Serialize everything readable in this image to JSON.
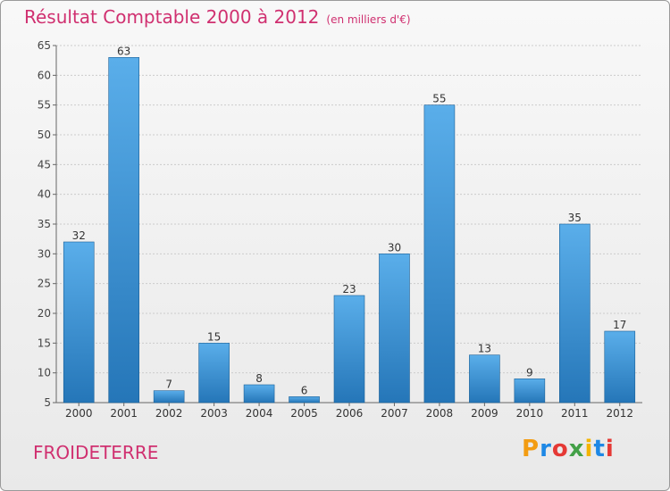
{
  "header": {
    "title": "Résultat Comptable 2000 à 2012",
    "subtitle": "(en milliers d'€)"
  },
  "footer": {
    "commune": "FROIDETERRE",
    "logo": [
      "P",
      "r",
      "o",
      "x",
      "i",
      "t",
      "i"
    ],
    "logo_colors": [
      "#f39c12",
      "#1e88e5",
      "#e53935",
      "#43a047",
      "#f4b400",
      "#1e88e5",
      "#e53935"
    ]
  },
  "colors": {
    "bar_top": "#5aaeea",
    "bar_bottom": "#2576b8",
    "bar_border": "#1a5f96",
    "title": "#d03070",
    "grid": "#cccccc"
  },
  "chart_data": {
    "type": "bar",
    "categories": [
      "2000",
      "2001",
      "2002",
      "2003",
      "2004",
      "2005",
      "2006",
      "2007",
      "2008",
      "2009",
      "2010",
      "2011",
      "2012"
    ],
    "values": [
      32,
      63,
      7,
      15,
      8,
      6,
      23,
      30,
      55,
      13,
      9,
      35,
      17
    ],
    "data_labels": [
      "32",
      "63",
      "7",
      "15",
      "8",
      "6",
      "23",
      "30",
      "55",
      "13",
      "9",
      "35",
      "17"
    ],
    "yticks": [
      5,
      10,
      15,
      20,
      25,
      30,
      35,
      40,
      45,
      50,
      55,
      60,
      65
    ],
    "ylim": [
      5,
      65
    ],
    "title": "Résultat Comptable 2000 à 2012",
    "xlabel": "",
    "ylabel": "",
    "grid": true,
    "legend": "none"
  }
}
